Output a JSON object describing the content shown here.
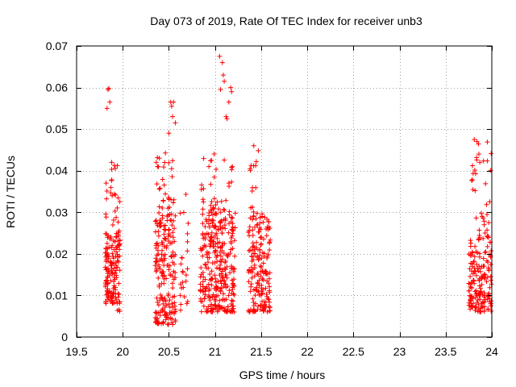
{
  "chart_data": {
    "type": "scatter",
    "title": "Day 073 of 2019, Rate Of TEC Index for receiver unb3",
    "xlabel": "GPS time / hours",
    "ylabel": "ROTI / TECUs",
    "xlim": [
      19.5,
      24
    ],
    "ylim": [
      0,
      0.07
    ],
    "x_ticks": [
      19.5,
      20,
      20.5,
      21,
      21.5,
      22,
      22.5,
      23,
      23.5,
      24
    ],
    "x_tick_labels": [
      "19.5",
      "20",
      "20.5",
      "21",
      "21.5",
      "22",
      "22.5",
      "23",
      "23.5",
      "24"
    ],
    "y_ticks": [
      0,
      0.01,
      0.02,
      0.03,
      0.04,
      0.05,
      0.06,
      0.07
    ],
    "y_tick_labels": [
      "0",
      "0.01",
      "0.02",
      "0.03",
      "0.04",
      "0.05",
      "0.06",
      "0.07"
    ],
    "grid": true,
    "marker": "+",
    "color": "#ff0000",
    "series": [
      {
        "name": "ROTI",
        "clusters": [
          {
            "x_range": [
              19.81,
              19.97
            ],
            "y_range": [
              0.008,
              0.025
            ],
            "count": 150
          },
          {
            "x_range": [
              19.81,
              19.97
            ],
            "y_range": [
              0.025,
              0.042
            ],
            "count": 25
          },
          {
            "x_range": [
              19.93,
              19.97
            ],
            "y_range": [
              0.006,
              0.009
            ],
            "count": 4
          },
          {
            "x_range": [
              20.35,
              20.57
            ],
            "y_range": [
              0.003,
              0.03
            ],
            "count": 200
          },
          {
            "x_range": [
              20.35,
              20.57
            ],
            "y_range": [
              0.03,
              0.045
            ],
            "count": 30
          },
          {
            "x_range": [
              20.62,
              20.71
            ],
            "y_range": [
              0.005,
              0.035
            ],
            "count": 25
          },
          {
            "x_range": [
              20.84,
              21.22
            ],
            "y_range": [
              0.006,
              0.032
            ],
            "count": 320
          },
          {
            "x_range": [
              20.85,
              21.2
            ],
            "y_range": [
              0.032,
              0.045
            ],
            "count": 25
          },
          {
            "x_range": [
              21.36,
              21.6
            ],
            "y_range": [
              0.006,
              0.03
            ],
            "count": 180
          },
          {
            "x_range": [
              21.38,
              21.47
            ],
            "y_range": [
              0.03,
              0.046
            ],
            "count": 12
          },
          {
            "x_range": [
              23.75,
              24.0
            ],
            "y_range": [
              0.006,
              0.025
            ],
            "count": 170
          },
          {
            "x_range": [
              23.78,
              24.0
            ],
            "y_range": [
              0.025,
              0.047
            ],
            "count": 30
          }
        ],
        "points": [
          [
            19.83,
            0.055
          ],
          [
            19.84,
            0.0595
          ],
          [
            19.85,
            0.0598
          ],
          [
            19.86,
            0.0565
          ],
          [
            19.82,
            0.037
          ],
          [
            19.88,
            0.042
          ],
          [
            20.52,
            0.0565
          ],
          [
            20.53,
            0.0555
          ],
          [
            20.55,
            0.0565
          ],
          [
            20.54,
            0.053
          ],
          [
            20.57,
            0.0515
          ],
          [
            20.5,
            0.049
          ],
          [
            21.05,
            0.0675
          ],
          [
            21.08,
            0.066
          ],
          [
            21.09,
            0.063
          ],
          [
            21.1,
            0.0615
          ],
          [
            21.06,
            0.0595
          ],
          [
            21.15,
            0.0565
          ],
          [
            21.17,
            0.06
          ],
          [
            21.18,
            0.059
          ],
          [
            21.12,
            0.053
          ],
          [
            21.13,
            0.0525
          ],
          [
            21.42,
            0.046
          ],
          [
            21.38,
            0.0405
          ],
          [
            23.81,
            0.0475
          ],
          [
            23.84,
            0.047
          ],
          [
            23.86,
            0.044
          ],
          [
            23.87,
            0.042
          ]
        ]
      }
    ]
  }
}
